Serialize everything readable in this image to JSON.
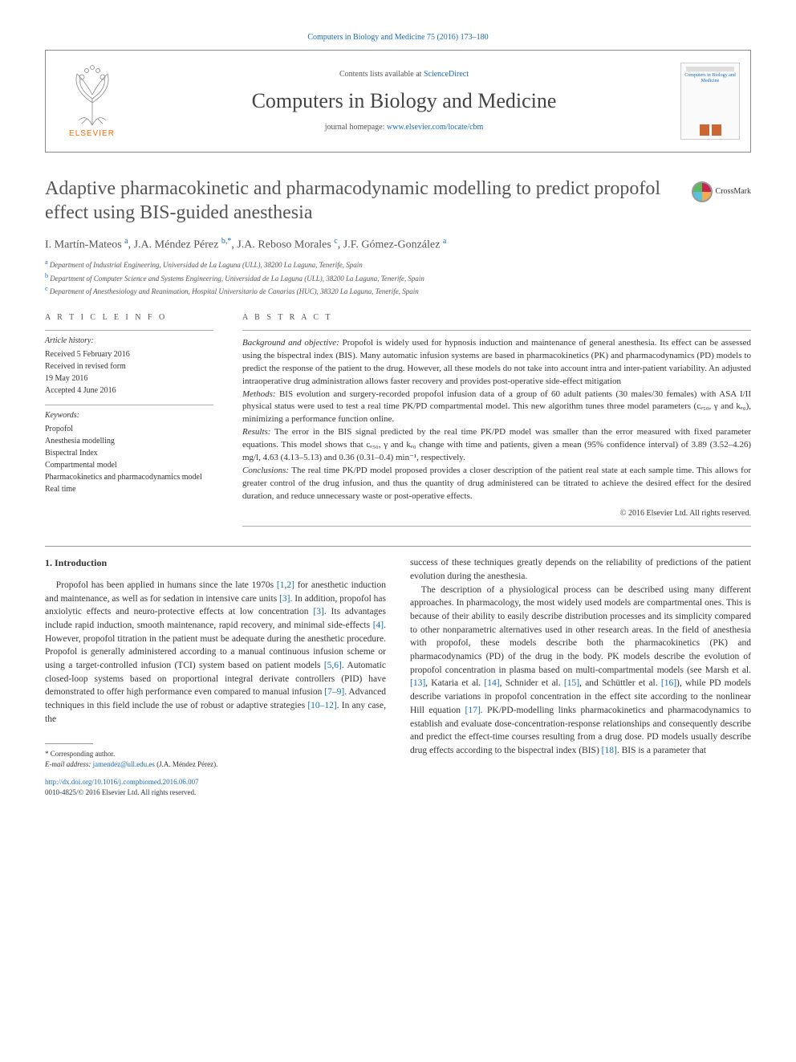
{
  "top_citation": "Computers in Biology and Medicine 75 (2016) 173–180",
  "header": {
    "elsevier_label": "ELSEVIER",
    "contents_prefix": "Contents lists available at ",
    "contents_link": "ScienceDirect",
    "journal_name": "Computers in Biology and Medicine",
    "homepage_prefix": "journal homepage: ",
    "homepage_link": "www.elsevier.com/locate/cbm",
    "cover_title": "Computers in Biology and Medicine"
  },
  "crossmark_label": "CrossMark",
  "title": "Adaptive pharmacokinetic and pharmacodynamic modelling to predict propofol effect using BIS-guided anesthesia",
  "authors_html": "I. Martín-Mateos <sup>a</sup>, J.A. Méndez Pérez <sup>b,*</sup>, J.A. Reboso Morales <sup>c</sup>, J.F. Gómez-González <sup>a</sup>",
  "affiliations": [
    {
      "sup": "a",
      "text": "Department of Industrial Engineering, Universidad de La Laguna (ULL), 38200 La Laguna, Tenerife, Spain"
    },
    {
      "sup": "b",
      "text": "Department of Computer Science and Systems Engineering, Universidad de La Laguna (ULL), 38200 La Laguna, Tenerife, Spain"
    },
    {
      "sup": "c",
      "text": "Department of Anesthesiology and Reanimation, Hospital Universitario de Canarias (HUC), 38320 La Laguna, Tenerife, Spain"
    }
  ],
  "article_info_heading": "A R T I C L E  I N F O",
  "abstract_heading": "A B S T R A C T",
  "history_label": "Article history:",
  "history": [
    "Received 5 February 2016",
    "Received in revised form",
    "19 May 2016",
    "Accepted 4 June 2016"
  ],
  "keywords_label": "Keywords:",
  "keywords": [
    "Propofol",
    "Anesthesia modelling",
    "Bispectral Index",
    "Compartmental model",
    "Pharmacokinetics and pharmacodynamics model",
    "Real time"
  ],
  "abstract": {
    "background_label": "Background and objective:",
    "background": " Propofol is widely used for hypnosis induction and maintenance of general anesthesia. Its effect can be assessed using the bispectral index (BIS). Many automatic infusion systems are based in pharmacokinetics (PK) and pharmacodynamics (PD) models to predict the response of the patient to the drug. However, all these models do not take into account intra and inter-patient variability. An adjusted intraoperative drug administration allows faster recovery and provides post-operative side-effect mitigation",
    "methods_label": "Methods:",
    "methods": " BIS evolution and surgery-recorded propofol infusion data of a group of 60 adult patients (30 males/30 females) with ASA I/II physical status were used to test a real time PK/PD compartmental model. This new algorithm tunes three model parameters (cₑ₅₀, γ and kₑ₀), minimizing a performance function online.",
    "results_label": "Results:",
    "results": " The error in the BIS signal predicted by the real time PK/PD model was smaller than the error measured with fixed parameter equations. This model shows that cₑ₅₀, γ and kₑ₀ change with time and patients, given a mean (95% confidence interval) of 3.89 (3.52–4.26) mg/l, 4.63 (4.13–5.13) and 0.36 (0.31–0.4) min⁻¹, respectively.",
    "conclusions_label": "Conclusions:",
    "conclusions": " The real time PK/PD model proposed provides a closer description of the patient real state at each sample time. This allows for greater control of the drug infusion, and thus the quantity of drug administered can be titrated to achieve the desired effect for the desired duration, and reduce unnecessary waste or post-operative effects."
  },
  "copyright": "© 2016 Elsevier Ltd. All rights reserved.",
  "section1_heading": "1.  Introduction",
  "col1_p1": "Propofol has been applied in humans since the late 1970s [1,2] for anesthetic induction and maintenance, as well as for sedation in intensive care units [3]. In addition, propofol has anxiolytic effects and neuro-protective effects at low concentration [3]. Its advantages include rapid induction, smooth maintenance, rapid recovery, and minimal side-effects [4]. However, propofol titration in the patient must be adequate during the anesthetic procedure. Propofol is generally administered according to a manual continuous infusion scheme or using a target-controlled infusion (TCI) system based on patient models [5,6]. Automatic closed-loop systems based on proportional integral derivate controllers (PID) have demonstrated to offer high performance even compared to manual infusion [7–9]. Advanced techniques in this field include the use of robust or adaptive strategies [10–12]. In any case, the",
  "col2_p1": "success of these techniques greatly depends on the reliability of predictions of the patient evolution during the anesthesia.",
  "col2_p2": "The description of a physiological process can be described using many different approaches. In pharmacology, the most widely used models are compartmental ones. This is because of their ability to easily describe distribution processes and its simplicity compared to other nonparametric alternatives used in other research areas. In the field of anesthesia with propofol, these models describe both the pharmacokinetics (PK) and pharmacodynamics (PD) of the drug in the body. PK models describe the evolution of propofol concentration in plasma based on multi-compartmental models (see Marsh et al. [13], Kataria et al. [14], Schnider et al. [15], and Schüttler et al. [16]), while PD models describe variations in propofol concentration in the effect site according to the nonlinear Hill equation [17]. PK/PD-modelling links pharmacokinetics and pharmacodynamics to establish and evaluate dose-concentration-response relationships and consequently describe and predict the effect-time courses resulting from a drug dose. PD models usually describe drug effects according to the bispectral index (BIS) [18]. BIS is a parameter that",
  "footnote": {
    "corr": "* Corresponding author.",
    "email_label": "E-mail address: ",
    "email": "jamendez@ull.edu.es",
    "email_after": " (J.A. Méndez Pérez)."
  },
  "doi": {
    "url": "http://dx.doi.org/10.1016/j.compbiomed.2016.06.007",
    "issn_line": "0010-4825/© 2016 Elsevier Ltd. All rights reserved."
  },
  "refs_col1": [
    "[1,2]",
    "[3]",
    "[3]",
    "[4]",
    "[5,6]",
    "[7–9]",
    "[10–12]"
  ],
  "refs_col2": [
    "[13]",
    "[14]",
    "[15]",
    "[16]",
    "[17]",
    "[18]"
  ],
  "colors": {
    "link": "#1a6bb8",
    "orange": "#ff6a00",
    "text": "#333333",
    "muted": "#555555",
    "border": "#999999"
  }
}
